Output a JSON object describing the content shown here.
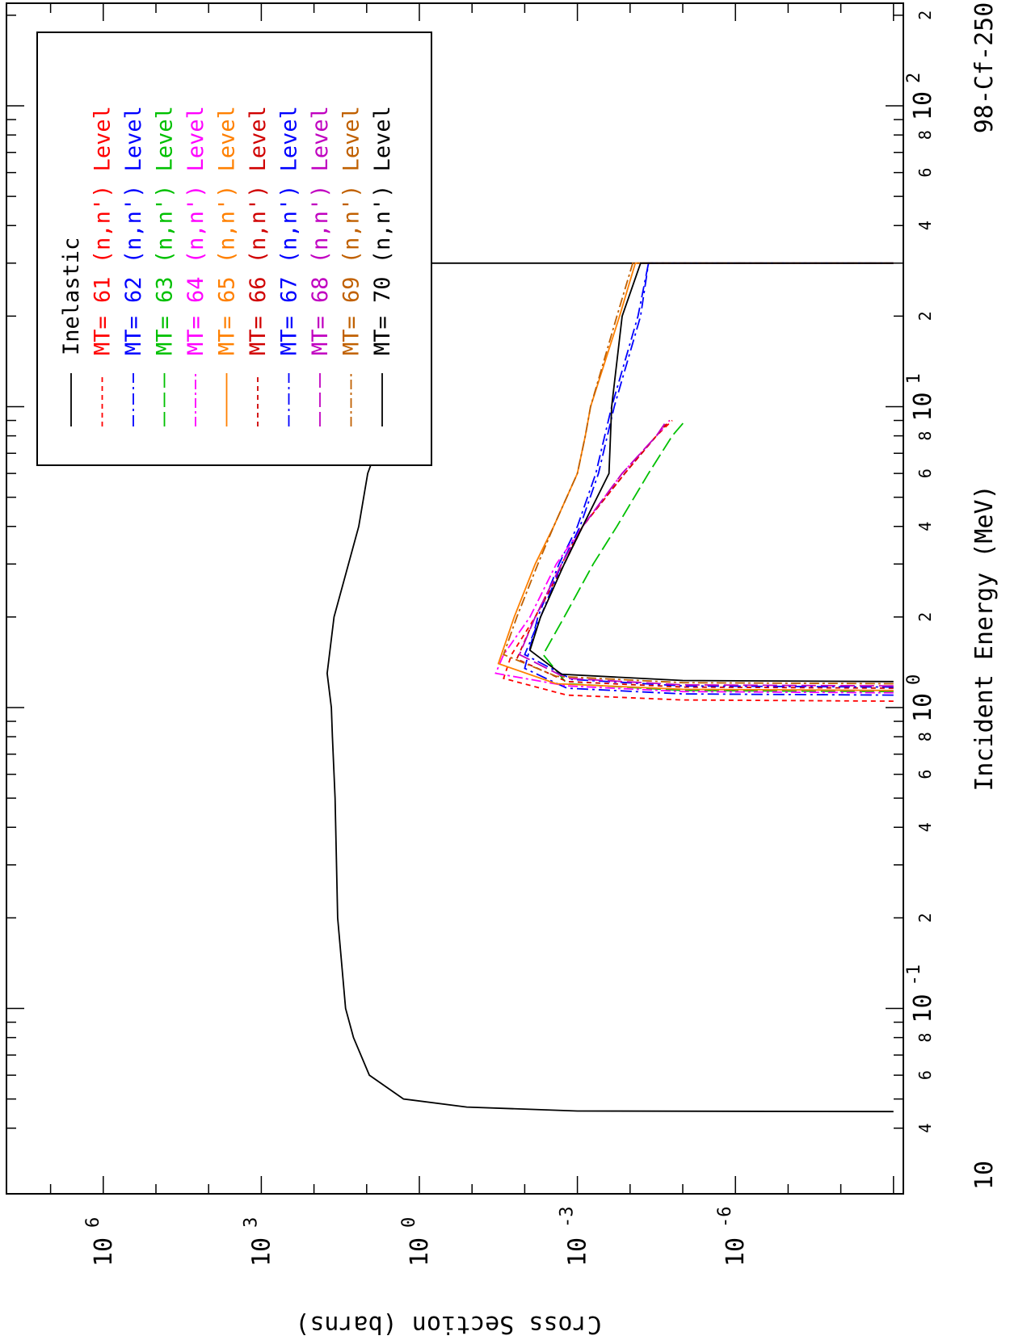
{
  "chart_data": {
    "type": "line",
    "orientation": "rotated-90-cw",
    "title": "98-Cf-250",
    "xlabel": "Incident Energy (MeV)",
    "ylabel": "Cross Section (barns)",
    "xscale": "log",
    "yscale": "log",
    "xlim": [
      0.04,
      250
    ],
    "ylim_exponent": [
      -9,
      8
    ],
    "x_tick_labels": [
      {
        "v": 0.04,
        "text": "4"
      },
      {
        "v": 0.06,
        "text": "6"
      },
      {
        "v": 0.08,
        "text": "8"
      },
      {
        "v": 0.1,
        "text": "10",
        "exp": "-1"
      },
      {
        "v": 0.2,
        "text": "2"
      },
      {
        "v": 0.4,
        "text": "4"
      },
      {
        "v": 0.6,
        "text": "6"
      },
      {
        "v": 0.8,
        "text": "8"
      },
      {
        "v": 1,
        "text": "10",
        "exp": "0"
      },
      {
        "v": 2,
        "text": "2"
      },
      {
        "v": 4,
        "text": "4"
      },
      {
        "v": 6,
        "text": "6"
      },
      {
        "v": 8,
        "text": "8"
      },
      {
        "v": 10,
        "text": "10",
        "exp": "1"
      },
      {
        "v": 20,
        "text": "2"
      },
      {
        "v": 40,
        "text": "4"
      },
      {
        "v": 60,
        "text": "6"
      },
      {
        "v": 80,
        "text": "8"
      },
      {
        "v": 100,
        "text": "10",
        "exp": "2"
      },
      {
        "v": 200,
        "text": "2"
      }
    ],
    "x_axis_left_label": "10",
    "y_tick_labels": [
      {
        "e": 6,
        "text": "10",
        "exp": "6"
      },
      {
        "e": 3,
        "text": "10",
        "exp": "3"
      },
      {
        "e": 0,
        "text": "10",
        "exp": "0"
      },
      {
        "e": -3,
        "text": "10",
        "exp": "-3"
      },
      {
        "e": -6,
        "text": "10",
        "exp": "-6"
      }
    ],
    "legend": {
      "position": "top-left",
      "entries": [
        {
          "mt": "",
          "name": "Inelastic",
          "color": "#000000",
          "dash": "none"
        },
        {
          "mt": "MT= 61",
          "name": "(n,n') Level",
          "color": "#ff0000",
          "dash": "6,5"
        },
        {
          "mt": "MT= 62",
          "name": "(n,n') Level",
          "color": "#0000ff",
          "dash": "14,5,3,5"
        },
        {
          "mt": "MT= 63",
          "name": "(n,n') Level",
          "color": "#00c000",
          "dash": "18,6"
        },
        {
          "mt": "MT= 64",
          "name": "(n,n') Level",
          "color": "#ff00ff",
          "dash": "12,4,3,4"
        },
        {
          "mt": "MT= 65",
          "name": "(n,n') Level",
          "color": "#ff8000",
          "dash": "none"
        },
        {
          "mt": "MT= 66",
          "name": "(n,n') Level",
          "color": "#d00000",
          "dash": "6,5"
        },
        {
          "mt": "MT= 67",
          "name": "(n,n') Level",
          "color": "#0000ff",
          "dash": "14,5,3,5"
        },
        {
          "mt": "MT= 68",
          "name": "(n,n') Level",
          "color": "#c000c0",
          "dash": "18,6"
        },
        {
          "mt": "MT= 69",
          "name": "(n,n') Level",
          "color": "#c06000",
          "dash": "12,4,3,4"
        },
        {
          "mt": "MT= 70",
          "name": "(n,n') Level",
          "color": "#000000",
          "dash": "none"
        }
      ]
    },
    "series": [
      {
        "name": "Inelastic",
        "color": "#000000",
        "dash": "none",
        "points": [
          [
            0.0454,
            -9
          ],
          [
            0.0456,
            -3
          ],
          [
            0.047,
            -0.9
          ],
          [
            0.05,
            0.3
          ],
          [
            0.06,
            0.95
          ],
          [
            0.08,
            1.25
          ],
          [
            0.1,
            1.4
          ],
          [
            0.2,
            1.55
          ],
          [
            0.5,
            1.6
          ],
          [
            0.8,
            1.65
          ],
          [
            1.0,
            1.67
          ],
          [
            1.3,
            1.75
          ],
          [
            2,
            1.62
          ],
          [
            4,
            1.15
          ],
          [
            6,
            0.98
          ],
          [
            8,
            0.72
          ],
          [
            10,
            0.68
          ],
          [
            20,
            0.33
          ],
          [
            30,
            0.32
          ],
          [
            30,
            -9
          ]
        ]
      },
      {
        "name": "MT= 61",
        "color": "#ff0000",
        "dash": "6,5",
        "points": [
          [
            1.05,
            -9
          ],
          [
            1.06,
            -5
          ],
          [
            1.1,
            -2.8
          ],
          [
            1.25,
            -1.6
          ],
          [
            1.5,
            -1.75
          ],
          [
            2,
            -2.2
          ],
          [
            3,
            -2.7
          ],
          [
            4,
            -3.1
          ],
          [
            6,
            -3.9
          ],
          [
            8,
            -4.5
          ],
          [
            9,
            -4.8
          ]
        ]
      },
      {
        "name": "MT= 62",
        "color": "#0000ff",
        "dash": "14,5,3,5",
        "points": [
          [
            1.1,
            -9
          ],
          [
            1.11,
            -5
          ],
          [
            1.16,
            -2.8
          ],
          [
            1.35,
            -2.0
          ],
          [
            2,
            -2.25
          ],
          [
            3,
            -2.65
          ],
          [
            4,
            -3.0
          ],
          [
            6,
            -3.35
          ],
          [
            10,
            -3.65
          ],
          [
            20,
            -4.15
          ],
          [
            30,
            -4.35
          ],
          [
            30,
            -9
          ]
        ]
      },
      {
        "name": "MT= 63",
        "color": "#00c000",
        "dash": "18,6",
        "points": [
          [
            1.13,
            -9
          ],
          [
            1.14,
            -5
          ],
          [
            1.2,
            -2.8
          ],
          [
            1.5,
            -2.35
          ],
          [
            2,
            -2.75
          ],
          [
            3,
            -3.3
          ],
          [
            4,
            -3.75
          ],
          [
            6,
            -4.35
          ],
          [
            8,
            -4.8
          ],
          [
            9,
            -5.05
          ]
        ]
      },
      {
        "name": "MT= 64",
        "color": "#ff00ff",
        "dash": "12,4,3,4",
        "points": [
          [
            1.12,
            -9
          ],
          [
            1.13,
            -5
          ],
          [
            1.18,
            -2.8
          ],
          [
            1.3,
            -1.45
          ],
          [
            1.5,
            -1.6
          ],
          [
            2,
            -2.1
          ],
          [
            3,
            -2.6
          ],
          [
            4,
            -3.1
          ],
          [
            6,
            -3.85
          ],
          [
            8,
            -4.5
          ],
          [
            9,
            -4.75
          ]
        ]
      },
      {
        "name": "MT= 65",
        "color": "#ff8000",
        "dash": "none",
        "points": [
          [
            1.14,
            -9
          ],
          [
            1.15,
            -5
          ],
          [
            1.2,
            -2.6
          ],
          [
            1.4,
            -1.5
          ],
          [
            2,
            -1.8
          ],
          [
            3,
            -2.2
          ],
          [
            4,
            -2.55
          ],
          [
            6,
            -3.0
          ],
          [
            8,
            -3.15
          ],
          [
            10,
            -3.25
          ],
          [
            20,
            -3.8
          ],
          [
            30,
            -4.1
          ],
          [
            30,
            -9
          ]
        ]
      },
      {
        "name": "MT= 66",
        "color": "#d00000",
        "dash": "6,5",
        "points": [
          [
            1.16,
            -9
          ],
          [
            1.17,
            -5
          ],
          [
            1.22,
            -2.8
          ],
          [
            1.45,
            -1.85
          ],
          [
            2,
            -2.2
          ],
          [
            3,
            -2.75
          ],
          [
            4,
            -3.1
          ],
          [
            6,
            -3.9
          ],
          [
            8,
            -4.5
          ],
          [
            9,
            -4.75
          ]
        ]
      },
      {
        "name": "MT= 67",
        "color": "#0000ff",
        "dash": "14,5,3,5",
        "points": [
          [
            1.17,
            -9
          ],
          [
            1.18,
            -5
          ],
          [
            1.24,
            -2.9
          ],
          [
            1.5,
            -2.0
          ],
          [
            2,
            -2.3
          ],
          [
            3,
            -2.7
          ],
          [
            4,
            -3.05
          ],
          [
            6,
            -3.4
          ],
          [
            10,
            -3.7
          ],
          [
            20,
            -4.2
          ],
          [
            30,
            -4.35
          ],
          [
            30,
            -9
          ]
        ]
      },
      {
        "name": "MT= 68",
        "color": "#c000c0",
        "dash": "18,6",
        "points": [
          [
            1.18,
            -9
          ],
          [
            1.19,
            -5
          ],
          [
            1.25,
            -2.8
          ],
          [
            1.5,
            -1.9
          ],
          [
            2,
            -2.2
          ],
          [
            3,
            -2.7
          ],
          [
            4,
            -3.1
          ],
          [
            6,
            -3.85
          ],
          [
            8,
            -4.5
          ],
          [
            9,
            -4.7
          ]
        ]
      },
      {
        "name": "MT= 69",
        "color": "#c06000",
        "dash": "12,4,3,4",
        "points": [
          [
            1.2,
            -9
          ],
          [
            1.21,
            -5
          ],
          [
            1.27,
            -2.6
          ],
          [
            1.5,
            -1.6
          ],
          [
            2,
            -1.85
          ],
          [
            3,
            -2.25
          ],
          [
            4,
            -2.55
          ],
          [
            6,
            -3.0
          ],
          [
            8,
            -3.15
          ],
          [
            10,
            -3.25
          ],
          [
            20,
            -3.75
          ],
          [
            30,
            -4.05
          ],
          [
            30,
            -9
          ]
        ]
      },
      {
        "name": "MT= 70",
        "color": "#000000",
        "dash": "none",
        "points": [
          [
            1.22,
            -9
          ],
          [
            1.23,
            -5
          ],
          [
            1.29,
            -2.7
          ],
          [
            1.55,
            -2.1
          ],
          [
            2,
            -2.3
          ],
          [
            3,
            -2.75
          ],
          [
            4,
            -3.1
          ],
          [
            6,
            -3.6
          ],
          [
            10,
            -3.65
          ],
          [
            20,
            -3.85
          ],
          [
            30,
            -4.2
          ],
          [
            30,
            -9
          ]
        ]
      }
    ]
  }
}
